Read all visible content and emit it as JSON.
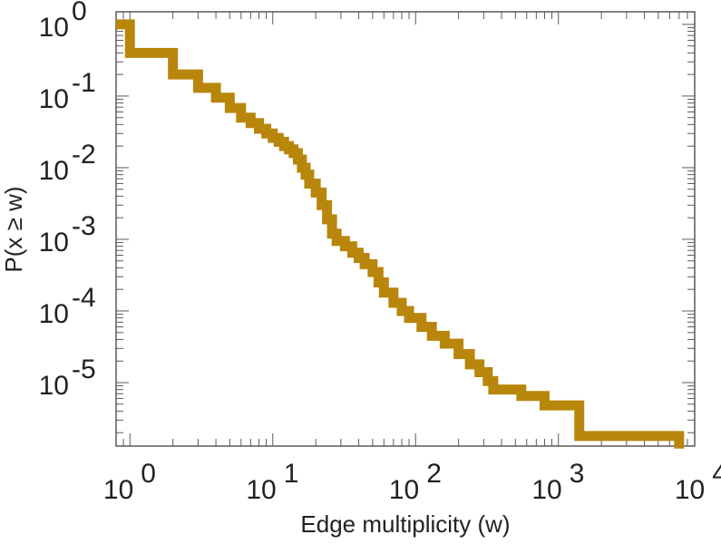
{
  "chart_data": {
    "type": "line",
    "step": true,
    "x_scale": "log",
    "y_scale": "log",
    "xlabel": "Edge multiplicity (w)",
    "ylabel": "P(x ≥ w)",
    "xlim": [
      0.8,
      9000
    ],
    "ylim": [
      1.3e-06,
      1.5
    ],
    "grid": false,
    "x_ticks": [
      {
        "base": "10",
        "exp": "0",
        "value": 1
      },
      {
        "base": "10",
        "exp": "1",
        "value": 10
      },
      {
        "base": "10",
        "exp": "2",
        "value": 100
      },
      {
        "base": "10",
        "exp": "3",
        "value": 1000
      },
      {
        "base": "10",
        "exp": "4",
        "value": 10000
      }
    ],
    "y_ticks": [
      {
        "base": "10",
        "exp": "0",
        "value": 1
      },
      {
        "base": "10",
        "exp": "-1",
        "value": 0.1
      },
      {
        "base": "10",
        "exp": "-2",
        "value": 0.01
      },
      {
        "base": "10",
        "exp": "-3",
        "value": 0.001
      },
      {
        "base": "10",
        "exp": "-4",
        "value": 0.0001
      },
      {
        "base": "10",
        "exp": "-5",
        "value": 1e-05
      }
    ],
    "series": [
      {
        "color": "#b8860b",
        "points": [
          [
            0.8,
            1.0
          ],
          [
            1,
            1.0
          ],
          [
            1,
            0.4
          ],
          [
            2,
            0.4
          ],
          [
            2,
            0.2
          ],
          [
            3,
            0.2
          ],
          [
            3,
            0.13
          ],
          [
            4,
            0.13
          ],
          [
            4,
            0.095
          ],
          [
            5,
            0.095
          ],
          [
            5,
            0.068
          ],
          [
            6,
            0.068
          ],
          [
            6,
            0.05
          ],
          [
            7,
            0.05
          ],
          [
            7,
            0.042
          ],
          [
            8,
            0.042
          ],
          [
            8,
            0.035
          ],
          [
            9,
            0.035
          ],
          [
            9,
            0.03
          ],
          [
            10,
            0.03
          ],
          [
            10,
            0.026
          ],
          [
            11,
            0.026
          ],
          [
            11,
            0.023
          ],
          [
            12,
            0.023
          ],
          [
            12,
            0.02
          ],
          [
            13,
            0.02
          ],
          [
            13,
            0.018
          ],
          [
            14,
            0.018
          ],
          [
            14,
            0.016
          ],
          [
            15,
            0.016
          ],
          [
            15,
            0.013
          ],
          [
            16,
            0.013
          ],
          [
            16,
            0.01
          ],
          [
            17,
            0.01
          ],
          [
            17,
            0.008
          ],
          [
            18,
            0.008
          ],
          [
            18,
            0.006
          ],
          [
            20,
            0.006
          ],
          [
            20,
            0.0045
          ],
          [
            22,
            0.0045
          ],
          [
            22,
            0.003
          ],
          [
            24,
            0.003
          ],
          [
            24,
            0.0019
          ],
          [
            26,
            0.0019
          ],
          [
            26,
            0.0012
          ],
          [
            28,
            0.0012
          ],
          [
            28,
            0.00095
          ],
          [
            32,
            0.00095
          ],
          [
            32,
            0.0008
          ],
          [
            36,
            0.0008
          ],
          [
            36,
            0.00065
          ],
          [
            40,
            0.00065
          ],
          [
            40,
            0.00055
          ],
          [
            44,
            0.00055
          ],
          [
            44,
            0.00045
          ],
          [
            50,
            0.00045
          ],
          [
            50,
            0.00035
          ],
          [
            55,
            0.00035
          ],
          [
            55,
            0.00025
          ],
          [
            60,
            0.00025
          ],
          [
            60,
            0.00018
          ],
          [
            70,
            0.00018
          ],
          [
            70,
            0.00013
          ],
          [
            80,
            0.00013
          ],
          [
            80,
            0.0001
          ],
          [
            90,
            0.0001
          ],
          [
            90,
            8e-05
          ],
          [
            110,
            8e-05
          ],
          [
            110,
            6e-05
          ],
          [
            130,
            6e-05
          ],
          [
            130,
            4.5e-05
          ],
          [
            160,
            4.5e-05
          ],
          [
            160,
            3.5e-05
          ],
          [
            200,
            3.5e-05
          ],
          [
            200,
            2.5e-05
          ],
          [
            240,
            2.5e-05
          ],
          [
            240,
            1.8e-05
          ],
          [
            280,
            1.8e-05
          ],
          [
            280,
            1.4e-05
          ],
          [
            320,
            1.4e-05
          ],
          [
            320,
            1.05e-05
          ],
          [
            350,
            1.05e-05
          ],
          [
            350,
            8e-06
          ],
          [
            550,
            8e-06
          ],
          [
            550,
            6.5e-06
          ],
          [
            800,
            6.5e-06
          ],
          [
            800,
            4.8e-06
          ],
          [
            1400,
            4.8e-06
          ],
          [
            1400,
            1.8e-06
          ],
          [
            7000,
            1.8e-06
          ],
          [
            7000,
            1.2e-06
          ]
        ]
      }
    ]
  }
}
